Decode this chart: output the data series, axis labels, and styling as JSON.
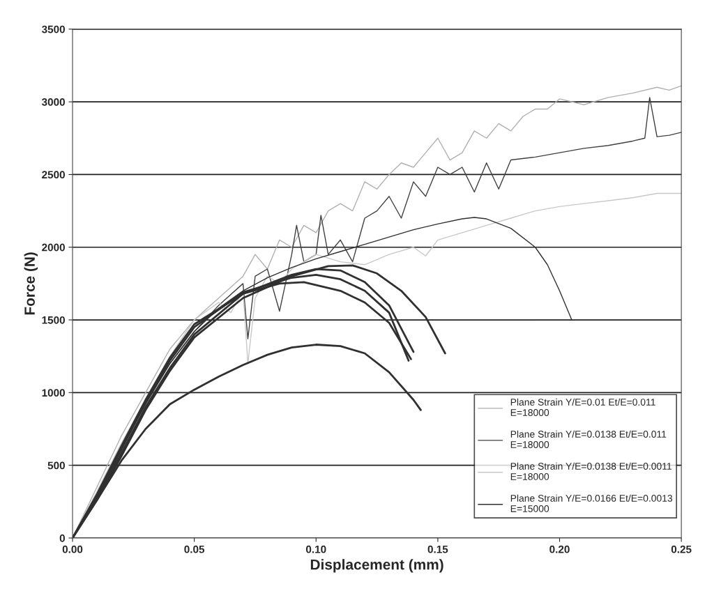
{
  "chart_data": {
    "type": "line",
    "xlabel": "Displacement (mm)",
    "ylabel": "Force (N)",
    "xlim": [
      0,
      0.25
    ],
    "ylim": [
      0,
      3500
    ],
    "xticks": [
      {
        "value": 0,
        "label": "0.00"
      },
      {
        "value": 0.05,
        "label": "0.05"
      },
      {
        "value": 0.1,
        "label": "0.10"
      },
      {
        "value": 0.15,
        "label": "0.15"
      },
      {
        "value": 0.2,
        "label": "0.20"
      },
      {
        "value": 0.25,
        "label": "0.25"
      }
    ],
    "yticks": [
      0,
      500,
      1000,
      1500,
      2000,
      2500,
      3000,
      3500
    ],
    "grid": "y",
    "legend": "bottom right",
    "marker": "none",
    "line_style": "solid",
    "series": [
      {
        "name": "Plane Strain Y/E=0.01 Et/E=0.011\nE=18000",
        "color": "#b0b0b0",
        "x": [
          0,
          0.01,
          0.02,
          0.03,
          0.04,
          0.05,
          0.06,
          0.07,
          0.075,
          0.08,
          0.085,
          0.09,
          0.095,
          0.1,
          0.105,
          0.11,
          0.115,
          0.12,
          0.125,
          0.13,
          0.135,
          0.14,
          0.145,
          0.15,
          0.155,
          0.16,
          0.165,
          0.17,
          0.175,
          0.18,
          0.185,
          0.19,
          0.195,
          0.2,
          0.21,
          0.22,
          0.23,
          0.24,
          0.245,
          0.25
        ],
        "values": [
          0,
          350,
          700,
          1000,
          1300,
          1500,
          1650,
          1800,
          1950,
          1850,
          2050,
          2000,
          2150,
          2100,
          2250,
          2300,
          2250,
          2450,
          2400,
          2500,
          2580,
          2550,
          2650,
          2750,
          2600,
          2650,
          2800,
          2750,
          2850,
          2800,
          2900,
          2950,
          2950,
          3020,
          2980,
          3030,
          3060,
          3100,
          3080,
          3110
        ]
      },
      {
        "name": "Plane Strain Y/E=0.0138 Et/E=0.011\nE=18000",
        "color": "#404040",
        "x": [
          0,
          0.01,
          0.02,
          0.03,
          0.04,
          0.05,
          0.06,
          0.07,
          0.072,
          0.075,
          0.08,
          0.085,
          0.09,
          0.092,
          0.095,
          0.1,
          0.102,
          0.105,
          0.11,
          0.115,
          0.12,
          0.125,
          0.13,
          0.135,
          0.14,
          0.145,
          0.15,
          0.155,
          0.16,
          0.165,
          0.17,
          0.175,
          0.18,
          0.19,
          0.2,
          0.21,
          0.22,
          0.23,
          0.235,
          0.237,
          0.24,
          0.245,
          0.25
        ],
        "values": [
          0,
          300,
          620,
          920,
          1200,
          1420,
          1600,
          1750,
          1370,
          1800,
          1850,
          1560,
          1950,
          2150,
          1900,
          1950,
          2220,
          1950,
          2050,
          1900,
          2200,
          2250,
          2350,
          2200,
          2450,
          2350,
          2550,
          2500,
          2550,
          2380,
          2580,
          2400,
          2600,
          2620,
          2650,
          2680,
          2700,
          2730,
          2750,
          3030,
          2760,
          2770,
          2790
        ]
      },
      {
        "name": "Plane Strain Y/E=0.0138 Et/E=0.0011\nE=18000",
        "color": "#c8c8c8",
        "x": [
          0,
          0.01,
          0.02,
          0.03,
          0.04,
          0.05,
          0.06,
          0.065,
          0.07,
          0.072,
          0.075,
          0.08,
          0.085,
          0.09,
          0.1,
          0.11,
          0.12,
          0.13,
          0.14,
          0.145,
          0.15,
          0.16,
          0.17,
          0.18,
          0.19,
          0.2,
          0.21,
          0.22,
          0.23,
          0.24,
          0.25
        ],
        "values": [
          0,
          320,
          650,
          950,
          1250,
          1500,
          1620,
          1550,
          1700,
          1200,
          1650,
          1800,
          1750,
          1850,
          1950,
          1900,
          1880,
          1950,
          2000,
          1940,
          2050,
          2100,
          2150,
          2200,
          2250,
          2280,
          2300,
          2320,
          2340,
          2370,
          2370
        ]
      },
      {
        "name": "Plane Strain Y/E=0.0166 Et/E=0.0013\nE=15000",
        "color": "#303030",
        "x": [
          0,
          0.01,
          0.02,
          0.03,
          0.04,
          0.05,
          0.06,
          0.07,
          0.08,
          0.09,
          0.1,
          0.11,
          0.12,
          0.13,
          0.14,
          0.15,
          0.16,
          0.165,
          0.17,
          0.18,
          0.19,
          0.195,
          0.2,
          0.205
        ],
        "values": [
          0,
          280,
          600,
          930,
          1200,
          1420,
          1580,
          1700,
          1790,
          1860,
          1920,
          1970,
          2020,
          2070,
          2120,
          2160,
          2195,
          2205,
          2195,
          2130,
          2000,
          1880,
          1700,
          1500
        ]
      },
      {
        "color": "#303030",
        "x": [
          0,
          0.01,
          0.02,
          0.03,
          0.04,
          0.05,
          0.07,
          0.09,
          0.105,
          0.115,
          0.125,
          0.135,
          0.145,
          0.153
        ],
        "values": [
          0,
          260,
          560,
          880,
          1150,
          1380,
          1650,
          1800,
          1870,
          1875,
          1820,
          1700,
          1520,
          1270
        ]
      },
      {
        "color": "#303030",
        "x": [
          0,
          0.01,
          0.02,
          0.03,
          0.04,
          0.05,
          0.07,
          0.09,
          0.1,
          0.11,
          0.12,
          0.13,
          0.14
        ],
        "values": [
          0,
          270,
          580,
          900,
          1170,
          1400,
          1680,
          1810,
          1850,
          1840,
          1760,
          1600,
          1280
        ]
      },
      {
        "color": "#303030",
        "x": [
          0,
          0.01,
          0.02,
          0.03,
          0.04,
          0.05,
          0.07,
          0.09,
          0.1,
          0.11,
          0.12,
          0.13,
          0.138
        ],
        "values": [
          0,
          290,
          610,
          930,
          1220,
          1450,
          1690,
          1790,
          1810,
          1780,
          1700,
          1550,
          1220
        ]
      },
      {
        "color": "#303030",
        "x": [
          0,
          0.01,
          0.02,
          0.03,
          0.04,
          0.05,
          0.07,
          0.085,
          0.095,
          0.11,
          0.12,
          0.13,
          0.139
        ],
        "values": [
          0,
          300,
          630,
          950,
          1240,
          1470,
          1680,
          1750,
          1760,
          1700,
          1620,
          1480,
          1230
        ]
      },
      {
        "color": "#303030",
        "x": [
          0,
          0.01,
          0.02,
          0.03,
          0.04,
          0.05,
          0.06,
          0.07,
          0.08,
          0.09,
          0.1,
          0.11,
          0.12,
          0.13,
          0.14,
          0.143
        ],
        "values": [
          0,
          260,
          530,
          750,
          920,
          1020,
          1110,
          1190,
          1260,
          1310,
          1330,
          1320,
          1270,
          1140,
          950,
          880
        ]
      }
    ]
  }
}
